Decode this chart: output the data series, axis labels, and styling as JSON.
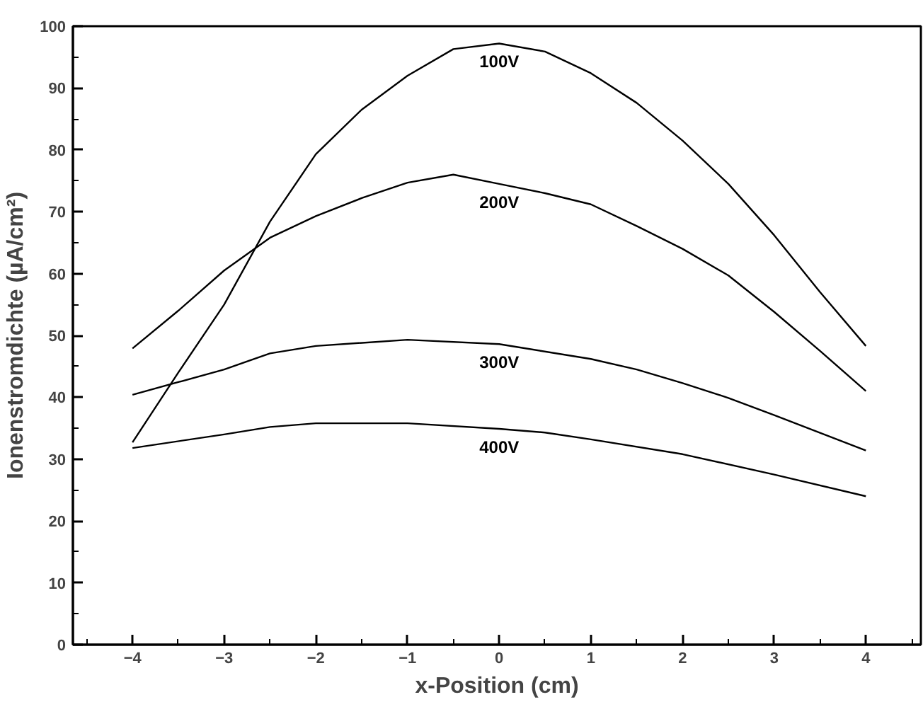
{
  "chart_data": {
    "type": "line",
    "xlabel": "x-Position (cm)",
    "ylabel": "Ionenstromdichte (µA/cm²)",
    "xlim": [
      -4.65,
      4.6
    ],
    "ylim": [
      0,
      100
    ],
    "xticks": [
      -4,
      -3,
      -2,
      -1,
      0,
      1,
      2,
      3,
      4
    ],
    "yticks": [
      0,
      10,
      20,
      30,
      40,
      50,
      60,
      70,
      80,
      90,
      100
    ],
    "grid": false,
    "legend": false,
    "marker": "none",
    "line_style": "solid",
    "series": [
      {
        "name": "100V",
        "color": "#000000",
        "x": [
          -4,
          -3.5,
          -3,
          -2.5,
          -2,
          -1.5,
          -1,
          -0.5,
          0,
          0.5,
          1,
          1.5,
          2,
          2.5,
          3,
          3.5,
          4
        ],
        "values": [
          32.7,
          44,
          55,
          68.4,
          79.3,
          86.5,
          92,
          96.3,
          97.2,
          95.9,
          92.4,
          87.6,
          81.5,
          74.5,
          66.2,
          57,
          48.3
        ]
      },
      {
        "name": "200V",
        "color": "#000000",
        "x": [
          -4,
          -3.5,
          -3,
          -2.5,
          -2,
          -1.5,
          -1,
          -0.5,
          0,
          0.5,
          1,
          1.5,
          2,
          2.5,
          3,
          3.5,
          4
        ],
        "values": [
          47.9,
          54,
          60.5,
          65.8,
          69.3,
          72.2,
          74.7,
          76,
          74.5,
          73,
          71.2,
          67.7,
          64,
          59.7,
          53.8,
          47.5,
          41
        ]
      },
      {
        "name": "300V",
        "color": "#000000",
        "x": [
          -4,
          -3,
          -2.5,
          -2,
          -1,
          0,
          1,
          1.5,
          2,
          2.5,
          3,
          4
        ],
        "values": [
          40.4,
          44.5,
          47.1,
          48.3,
          49.3,
          48.6,
          46.2,
          44.5,
          42.3,
          39.9,
          37.1,
          31.4
        ]
      },
      {
        "name": "400V",
        "color": "#000000",
        "x": [
          -4,
          -3,
          -2.5,
          -2,
          -1,
          0,
          0.5,
          1,
          2,
          3,
          4
        ],
        "values": [
          31.8,
          34,
          35.2,
          35.8,
          35.8,
          34.9,
          34.3,
          33.2,
          30.8,
          27.5,
          24
        ]
      }
    ]
  }
}
